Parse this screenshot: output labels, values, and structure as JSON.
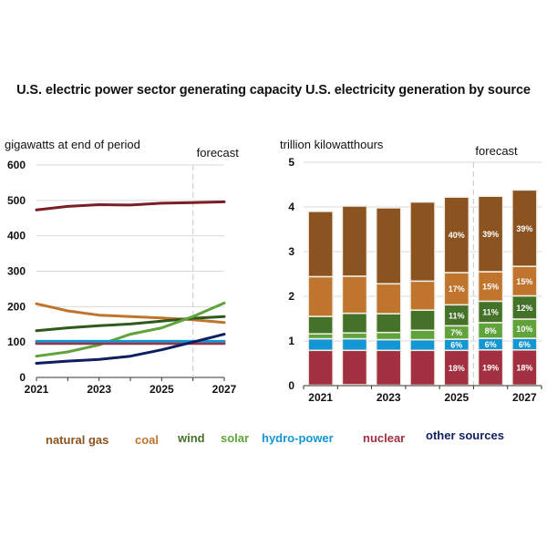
{
  "title": "U.S. electric power sector generating capacity U.S. electricity generation by source",
  "colors": {
    "natural_gas_line": "#7B1F27",
    "natural_gas_bar": "#8B5320",
    "coal": "#C0752E",
    "wind": "#2E5A1C",
    "wind_bar": "#447228",
    "solar": "#5FA33A",
    "hydro": "#1296D4",
    "nuclear": "#A23040",
    "other": "#0F1E5E"
  },
  "legend": [
    {
      "key": "natural_gas",
      "label": "natural gas",
      "color": "#8B5320"
    },
    {
      "key": "coal",
      "label": "coal",
      "color": "#C0752E"
    },
    {
      "key": "wind",
      "label": "wind",
      "color": "#447228"
    },
    {
      "key": "solar",
      "label": "solar",
      "color": "#5FA33A"
    },
    {
      "key": "hydro",
      "label": "hydro-power",
      "color": "#1296D4"
    },
    {
      "key": "nuclear",
      "label": "nuclear",
      "color": "#A23040"
    },
    {
      "key": "other",
      "label": "other sources",
      "color": "#0F1E5E"
    }
  ],
  "chart_data": [
    {
      "type": "line",
      "title": "U.S. electric power sector generating capacity",
      "ylabel": "gigawatts at end of period",
      "xlabel": "",
      "x": [
        2021,
        2022,
        2023,
        2024,
        2025,
        2026,
        2027
      ],
      "xtick_labels": [
        "2021",
        "2023",
        "2025",
        "2027"
      ],
      "ylim": [
        0,
        600
      ],
      "yticks": [
        0,
        100,
        200,
        300,
        400,
        500,
        600
      ],
      "grid": true,
      "forecast_label": "forecast",
      "forecast_start": 2026,
      "series": [
        {
          "name": "natural gas",
          "color": "#7B1F27",
          "values": [
            473,
            483,
            488,
            487,
            492,
            494,
            496
          ]
        },
        {
          "name": "coal",
          "color": "#C0752E",
          "values": [
            208,
            188,
            176,
            172,
            168,
            163,
            155
          ]
        },
        {
          "name": "wind",
          "color": "#2E5A1C",
          "values": [
            132,
            140,
            146,
            151,
            159,
            167,
            172
          ]
        },
        {
          "name": "solar",
          "color": "#5FA33A",
          "values": [
            60,
            72,
            92,
            122,
            140,
            172,
            210
          ]
        },
        {
          "name": "nuclear",
          "color": "#A23040",
          "values": [
            96,
            96,
            96,
            96,
            96,
            96,
            96
          ]
        },
        {
          "name": "hydro-power",
          "color": "#1296D4",
          "values": [
            102,
            102,
            102,
            102,
            102,
            102,
            102
          ]
        },
        {
          "name": "other sources",
          "color": "#0F1E5E",
          "values": [
            40,
            46,
            51,
            60,
            78,
            100,
            122
          ]
        }
      ]
    },
    {
      "type": "bar",
      "stacked": true,
      "title": "U.S. electricity generation by source",
      "ylabel": "trillion kilowatthours",
      "xlabel": "",
      "categories": [
        "2021",
        "2022",
        "2023",
        "2024",
        "2025",
        "2026",
        "2027"
      ],
      "xtick_labels": [
        "2021",
        "",
        "2023",
        "",
        "2025",
        "",
        "2027"
      ],
      "ylim": [
        0,
        5
      ],
      "yticks": [
        0,
        1,
        2,
        3,
        4,
        5
      ],
      "grid": true,
      "forecast_label": "forecast",
      "forecast_start_index": 5,
      "series": [
        {
          "name": "other sources",
          "color": "#0F1E5E",
          "values": [
            0.01,
            0.02,
            0.01,
            0.01,
            0.01,
            0.01,
            0.01
          ],
          "labels": [
            "",
            "",
            "",
            "",
            "",
            "",
            ""
          ]
        },
        {
          "name": "nuclear",
          "color": "#A23040",
          "values": [
            0.78,
            0.77,
            0.78,
            0.78,
            0.78,
            0.79,
            0.79
          ],
          "labels": [
            "",
            "",
            "",
            "",
            "18%",
            "19%",
            "18%"
          ]
        },
        {
          "name": "hydro-power",
          "color": "#1296D4",
          "values": [
            0.26,
            0.26,
            0.24,
            0.24,
            0.25,
            0.26,
            0.26
          ],
          "labels": [
            "",
            "",
            "",
            "",
            "6%",
            "6%",
            "6%"
          ]
        },
        {
          "name": "solar",
          "color": "#5FA33A",
          "values": [
            0.11,
            0.13,
            0.16,
            0.21,
            0.3,
            0.35,
            0.43
          ],
          "labels": [
            "",
            "",
            "",
            "",
            "7%",
            "8%",
            "10%"
          ]
        },
        {
          "name": "wind",
          "color": "#447228",
          "values": [
            0.39,
            0.44,
            0.42,
            0.45,
            0.47,
            0.48,
            0.52
          ],
          "labels": [
            "",
            "",
            "",
            "",
            "11%",
            "11%",
            "12%"
          ]
        },
        {
          "name": "coal",
          "color": "#C0752E",
          "values": [
            0.89,
            0.83,
            0.67,
            0.65,
            0.72,
            0.66,
            0.66
          ],
          "labels": [
            "",
            "",
            "",
            "",
            "17%",
            "15%",
            "15%"
          ]
        },
        {
          "name": "natural gas",
          "color": "#8B5320",
          "values": [
            1.46,
            1.57,
            1.7,
            1.77,
            1.69,
            1.69,
            1.71
          ],
          "labels": [
            "",
            "",
            "",
            "",
            "40%",
            "39%",
            "39%"
          ]
        }
      ]
    }
  ]
}
